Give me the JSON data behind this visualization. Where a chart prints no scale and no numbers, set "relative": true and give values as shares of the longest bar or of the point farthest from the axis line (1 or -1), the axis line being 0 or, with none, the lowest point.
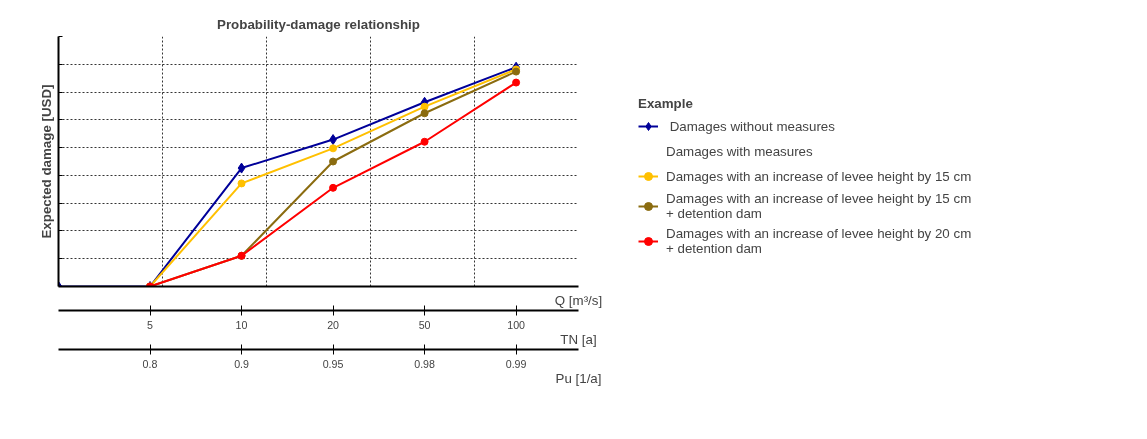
{
  "chart_data": {
    "type": "line",
    "title": "Probability-damage relationship",
    "xlabel": "TN [a]",
    "ylabel": "Expected damage [USD]",
    "legend_title": "Example",
    "relative": true,
    "marker": "circle",
    "grid": true,
    "legend": "right",
    "categories": [
      null,
      "5",
      "10",
      "20",
      "50",
      "100"
    ],
    "annotations": [
      "Damages with measures",
      "Q [m³/s]",
      "Pu [1/a]",
      {
        "text": "0.8",
        "x": "5"
      },
      {
        "text": "0.9",
        "x": "10"
      },
      {
        "text": "0.95",
        "x": "20"
      },
      {
        "text": "0.98",
        "x": "50"
      },
      {
        "text": "0.99",
        "x": "100"
      }
    ],
    "series": [
      {
        "name": " Damages without measures",
        "color": "#000099",
        "marker": "diamond",
        "values": [
          0,
          0,
          0.54,
          0.67,
          0.84,
          1
        ]
      },
      {
        "name": "Damages with an increase of levee height by 15 cm",
        "color": "#ffc000",
        "values": [
          null,
          0,
          0.47,
          0.63,
          0.82,
          0.99
        ]
      },
      {
        "name": "Damages with an increase of levee height by 15 cm\n+ detention dam",
        "color": "#8b6c10",
        "values": [
          null,
          0,
          0.14,
          0.57,
          0.79,
          0.98
        ]
      },
      {
        "name": "Damages with an increase of levee height by 20 cm\n+ detention dam",
        "color": "#ff0000",
        "values": [
          null,
          0,
          0.14,
          0.45,
          0.66,
          0.93
        ]
      }
    ]
  }
}
